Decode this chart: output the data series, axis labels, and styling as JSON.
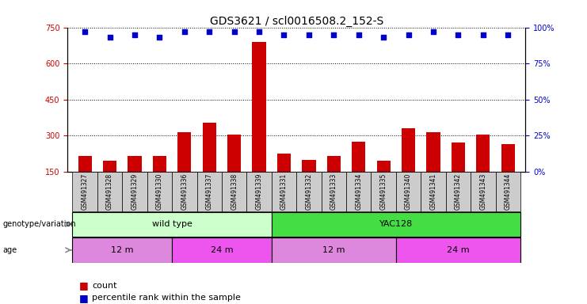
{
  "title": "GDS3621 / scl0016508.2_152-S",
  "samples": [
    "GSM491327",
    "GSM491328",
    "GSM491329",
    "GSM491330",
    "GSM491336",
    "GSM491337",
    "GSM491338",
    "GSM491339",
    "GSM491331",
    "GSM491332",
    "GSM491333",
    "GSM491334",
    "GSM491335",
    "GSM491340",
    "GSM491341",
    "GSM491342",
    "GSM491343",
    "GSM491344"
  ],
  "counts": [
    215,
    195,
    215,
    215,
    315,
    355,
    305,
    690,
    225,
    200,
    215,
    275,
    195,
    330,
    315,
    270,
    305,
    265
  ],
  "percentile_ranks": [
    97,
    93,
    95,
    93,
    97,
    97,
    97,
    97,
    95,
    95,
    95,
    95,
    93,
    95,
    97,
    95,
    95,
    95
  ],
  "ylim_left": [
    150,
    750
  ],
  "ylim_right": [
    0,
    100
  ],
  "yticks_left": [
    150,
    300,
    450,
    600,
    750
  ],
  "yticks_right": [
    0,
    25,
    50,
    75,
    100
  ],
  "ylabel_left_color": "#cc0000",
  "ylabel_right_color": "#0000cc",
  "bar_color": "#cc0000",
  "dot_color": "#0000cc",
  "grid_color": "#000000",
  "background_color": "#ffffff",
  "genotype_groups": [
    {
      "label": "wild type",
      "start": 0,
      "end": 8,
      "color": "#ccffcc"
    },
    {
      "label": "YAC128",
      "start": 8,
      "end": 18,
      "color": "#44dd44"
    }
  ],
  "age_groups": [
    {
      "label": "12 m",
      "start": 0,
      "end": 4,
      "color": "#dd88dd"
    },
    {
      "label": "24 m",
      "start": 4,
      "end": 8,
      "color": "#ee55ee"
    },
    {
      "label": "12 m",
      "start": 8,
      "end": 13,
      "color": "#dd88dd"
    },
    {
      "label": "24 m",
      "start": 13,
      "end": 18,
      "color": "#ee55ee"
    }
  ],
  "legend_items": [
    {
      "label": "count",
      "color": "#cc0000"
    },
    {
      "label": "percentile rank within the sample",
      "color": "#0000cc"
    }
  ],
  "title_fontsize": 10,
  "tick_fontsize": 7,
  "sample_fontsize": 5.5,
  "annot_fontsize": 8,
  "legend_fontsize": 8
}
